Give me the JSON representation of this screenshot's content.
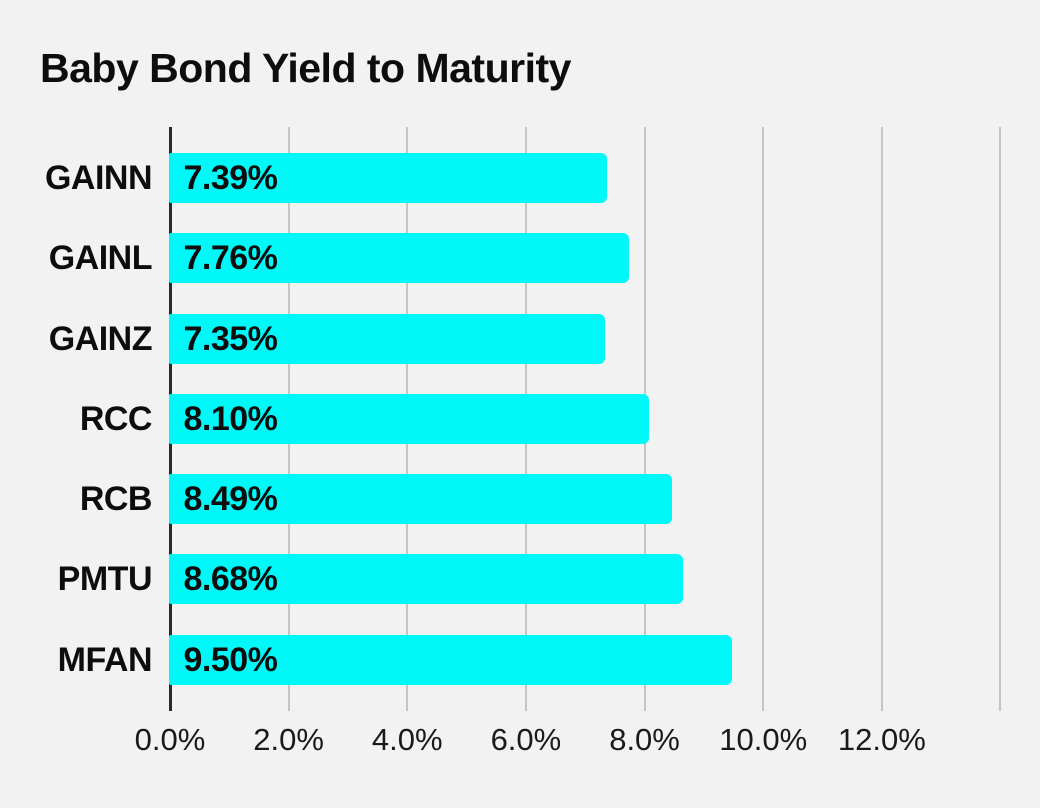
{
  "page": {
    "background_color": "#f2f2f2"
  },
  "chart_data": {
    "type": "bar",
    "orientation": "horizontal",
    "title": "Baby Bond Yield to Maturity",
    "categories": [
      "GAINN",
      "GAINL",
      "GAINZ",
      "RCC",
      "RCB",
      "PMTU",
      "MFAN"
    ],
    "values": [
      7.39,
      7.76,
      7.35,
      8.1,
      8.49,
      8.68,
      9.5
    ],
    "value_labels": [
      "7.39%",
      "7.76%",
      "7.35%",
      "8.10%",
      "8.49%",
      "8.68%",
      "9.50%"
    ],
    "x_tick_labels": [
      "0.0%",
      "2.0%",
      "4.0%",
      "6.0%",
      "8.0%",
      "10.0%",
      "12.0%"
    ],
    "xlim": [
      0,
      14
    ],
    "grid_step_percent": 2,
    "grid": true,
    "legend": false,
    "xlabel": "",
    "ylabel": "",
    "bar_color": "#00F8F8",
    "gridline_color": "#c4c4c4",
    "axis_color": "#2b2b2b",
    "text_color": "#0d0d0d",
    "tick_text_color": "#1a1a1a"
  }
}
